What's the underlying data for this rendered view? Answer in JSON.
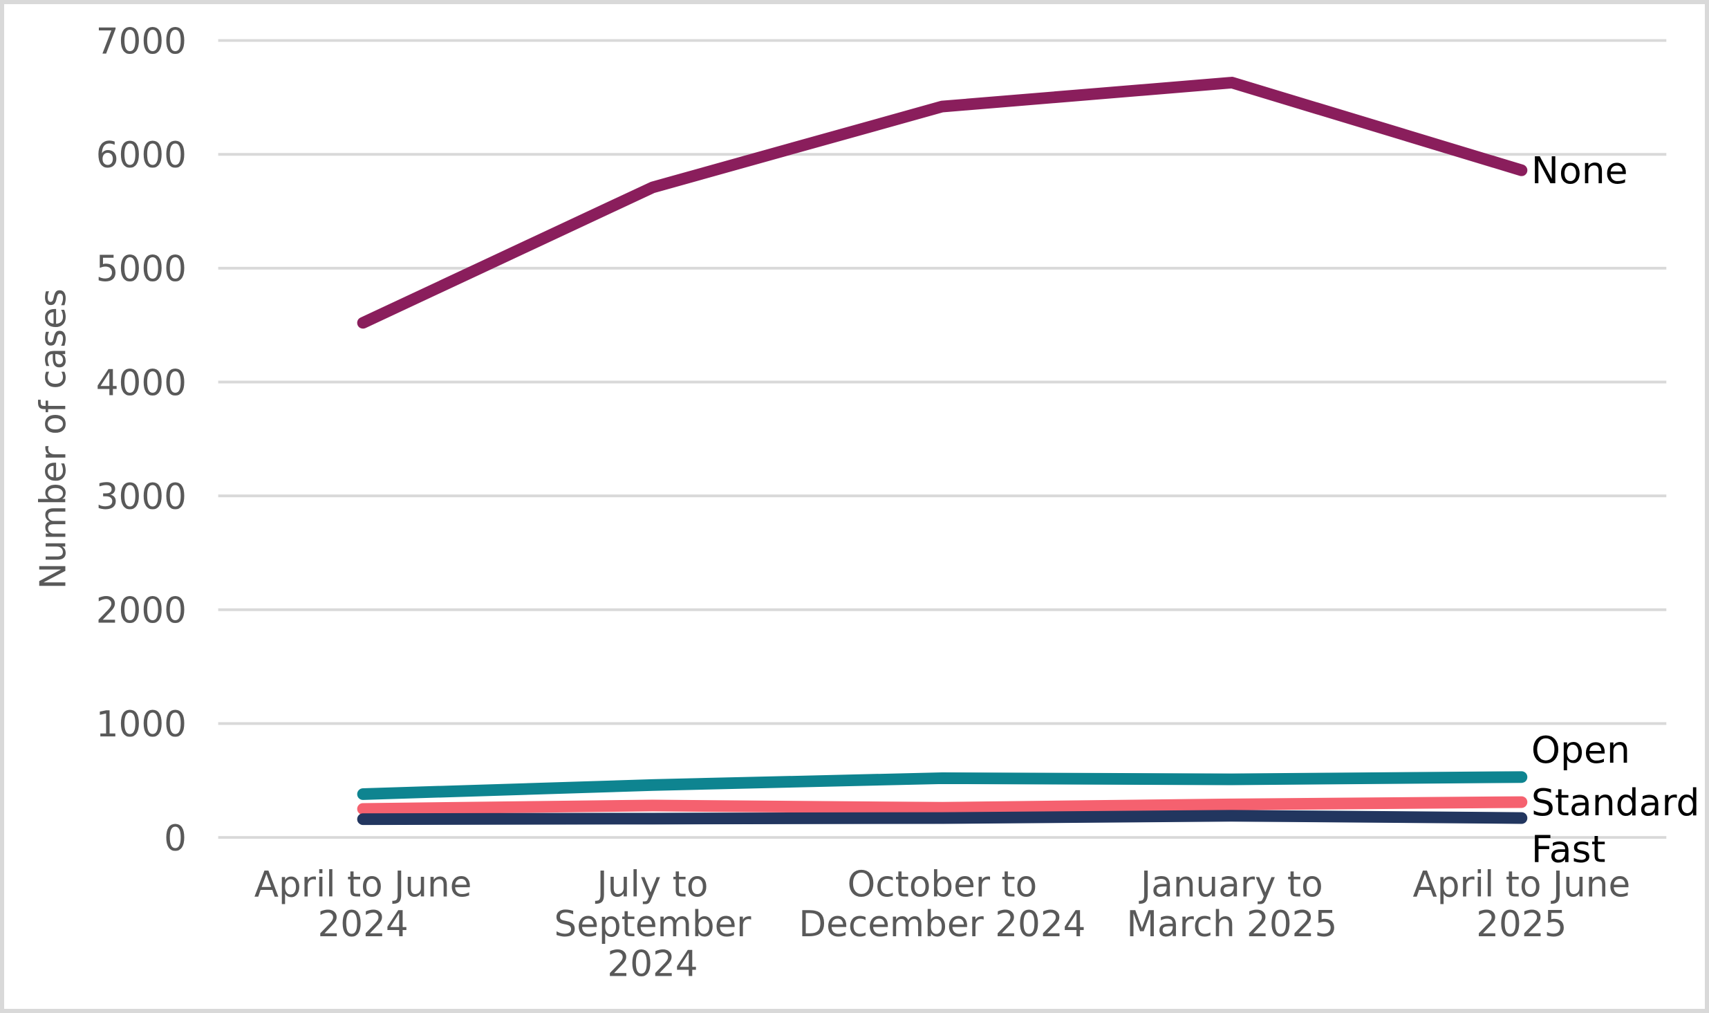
{
  "chart_data": {
    "type": "line",
    "title": "",
    "xlabel": "",
    "ylabel": "Number of cases",
    "ylim": [
      0,
      7000
    ],
    "ytick_step": 1000,
    "grid": "horizontal-only",
    "gridline_color": "#d9d9d9",
    "tick_text_color": "#595959",
    "legend_position": "direct-labels-at-line-ends-right",
    "categories": [
      "April to June\n2024",
      "July to\nSeptember\n2024",
      "October to\nDecember 2024",
      "January to\nMarch 2025",
      "April to June\n2025"
    ],
    "series": [
      {
        "name": "None",
        "color": "#8a1e5c",
        "values": [
          4520,
          5710,
          6420,
          6630,
          5860
        ],
        "label_offset": 0
      },
      {
        "name": "Open",
        "color": "#0e8490",
        "values": [
          380,
          460,
          520,
          510,
          530
        ],
        "label_offset": -40
      },
      {
        "name": "Standard",
        "color": "#f5616f",
        "values": [
          250,
          280,
          260,
          290,
          310
        ],
        "label_offset": 0
      },
      {
        "name": "Fast",
        "color": "#22365f",
        "values": [
          160,
          165,
          170,
          190,
          170
        ],
        "label_offset": 45
      }
    ],
    "ytick_labels": [
      "0",
      "1000",
      "2000",
      "3000",
      "4000",
      "5000",
      "6000",
      "7000"
    ]
  }
}
